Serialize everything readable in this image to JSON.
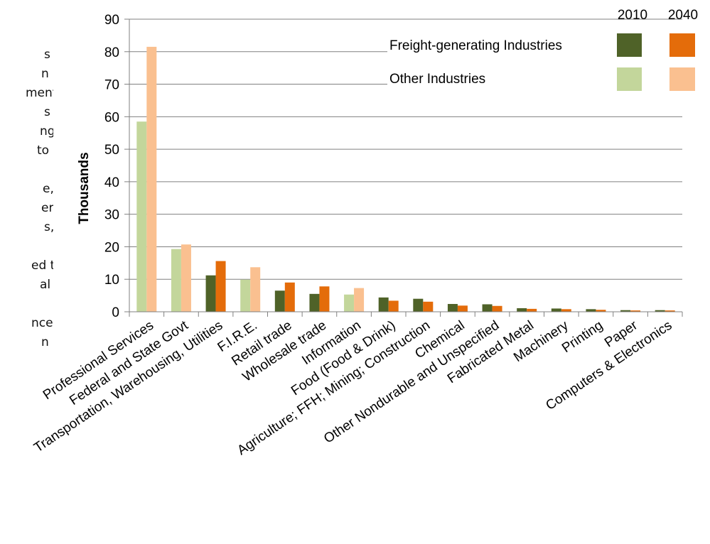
{
  "side_text": [
    {
      "text": "s",
      "indent": 62
    },
    {
      "text": "n",
      "indent": 58
    },
    {
      "text": "ment",
      "indent": 36
    },
    {
      "text": "s",
      "indent": 62
    },
    {
      "text": "ng",
      "indent": 56
    },
    {
      "text": "to",
      "indent": 52
    },
    {
      "text": "",
      "indent": 0
    },
    {
      "text": "e,",
      "indent": 60
    },
    {
      "text": "er",
      "indent": 58
    },
    {
      "text": "s,",
      "indent": 62
    },
    {
      "text": "",
      "indent": 0
    },
    {
      "text": "ed to",
      "indent": 44
    },
    {
      "text": "al",
      "indent": 56
    },
    {
      "text": "",
      "indent": 0
    },
    {
      "text": "nce",
      "indent": 44
    },
    {
      "text": "n",
      "indent": 58
    }
  ],
  "colors": {
    "freight_2010": "#4f6228",
    "freight_2040": "#e46c0a",
    "other_2010": "#c3d69b",
    "other_2040": "#fac090",
    "grid": "#808080",
    "text": "#000000"
  },
  "chart_data": {
    "type": "bar",
    "ylabel": "Thousands",
    "ylim": [
      0,
      90
    ],
    "yticks": [
      0,
      10,
      20,
      30,
      40,
      50,
      60,
      70,
      80,
      90
    ],
    "grid": true,
    "legend": {
      "placement": "top-right",
      "years": [
        "2010",
        "2040"
      ],
      "groups": [
        "Freight-generating Industries",
        "Other Industries"
      ]
    },
    "categories": [
      "Professional Services",
      "Federal and State Govt",
      "Transportation, Warehousing, Utilities",
      "F.I.R.E.",
      "Retail trade",
      "Wholesale trade",
      "Information",
      "Food (Food & Drink)",
      "Agriculture; FFH; Mining; Construction",
      "Chemical",
      "Other Nondurable and Unspecified",
      "Fabricated Metal",
      "Machinery",
      "Printing",
      "Paper",
      "Computers & Electronics"
    ],
    "group": [
      "other",
      "other",
      "freight",
      "other",
      "freight",
      "freight",
      "other",
      "freight",
      "freight",
      "freight",
      "freight",
      "freight",
      "freight",
      "freight",
      "freight",
      "freight"
    ],
    "series": [
      {
        "year": "2010",
        "values": [
          58.5,
          19.3,
          11.2,
          9.9,
          6.5,
          5.5,
          5.3,
          4.4,
          4.0,
          2.4,
          2.3,
          1.1,
          1.0,
          0.8,
          0.5,
          0.5
        ]
      },
      {
        "year": "2040",
        "values": [
          81.5,
          20.7,
          15.6,
          13.7,
          9.0,
          7.8,
          7.3,
          3.4,
          3.1,
          1.9,
          1.8,
          0.9,
          0.8,
          0.6,
          0.4,
          0.4
        ]
      }
    ]
  }
}
